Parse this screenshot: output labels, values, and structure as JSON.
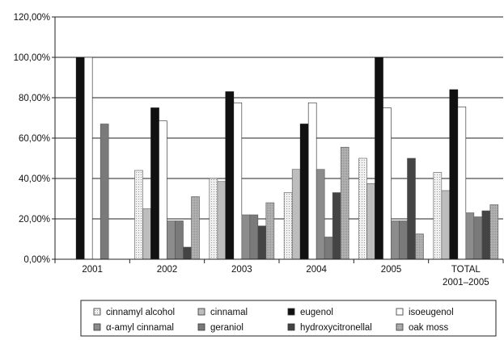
{
  "chart_data": {
    "type": "bar",
    "title": "",
    "xlabel": "",
    "ylabel": "",
    "categories": [
      "2001",
      "2002",
      "2003",
      "2004",
      "2005",
      "TOTAL\n2001–2005"
    ],
    "category_lines": [
      [
        "2001"
      ],
      [
        "2002"
      ],
      [
        "2003"
      ],
      [
        "2004"
      ],
      [
        "2005"
      ],
      [
        "TOTAL",
        "2001–2005"
      ]
    ],
    "ylim": [
      0,
      120
    ],
    "yticks": [
      {
        "value": 0,
        "label": "0,00%"
      },
      {
        "value": 20,
        "label": "20,00%"
      },
      {
        "value": 40,
        "label": "40,00%"
      },
      {
        "value": 60,
        "label": "60,00%"
      },
      {
        "value": 80,
        "label": "80,00%"
      },
      {
        "value": 100,
        "label": "100,00%"
      },
      {
        "value": 120,
        "label": "120,00%"
      }
    ],
    "grid": true,
    "legend_position": "bottom",
    "series": [
      {
        "name": "cinnamyl alcohol",
        "color": "#d9d9d9",
        "values": [
          0,
          44,
          40,
          33,
          50,
          43
        ]
      },
      {
        "name": "cinnamal",
        "color": "#bdbdbd",
        "values": [
          0,
          25,
          38.5,
          44.5,
          37.5,
          34
        ]
      },
      {
        "name": "eugenol",
        "color": "#111111",
        "values": [
          100,
          75,
          83,
          67,
          100,
          84
        ]
      },
      {
        "name": "isoeugenol",
        "color": "#ffffff",
        "values": [
          100,
          68.5,
          77.5,
          77.5,
          75,
          75.5
        ]
      },
      {
        "name": "α-amyl cinnamal",
        "color": "#8c8c8c",
        "values": [
          0,
          19,
          22,
          44.5,
          19,
          23
        ]
      },
      {
        "name": "geraniol",
        "color": "#7a7a7a",
        "values": [
          67,
          19,
          22,
          11,
          19,
          21
        ]
      },
      {
        "name": "hydroxycitronellal",
        "color": "#444444",
        "values": [
          0,
          6,
          16.5,
          33,
          50,
          24
        ]
      },
      {
        "name": "oak moss",
        "color": "#a6a6a6",
        "values": [
          0,
          31,
          28,
          55.5,
          12.5,
          27
        ]
      }
    ]
  }
}
